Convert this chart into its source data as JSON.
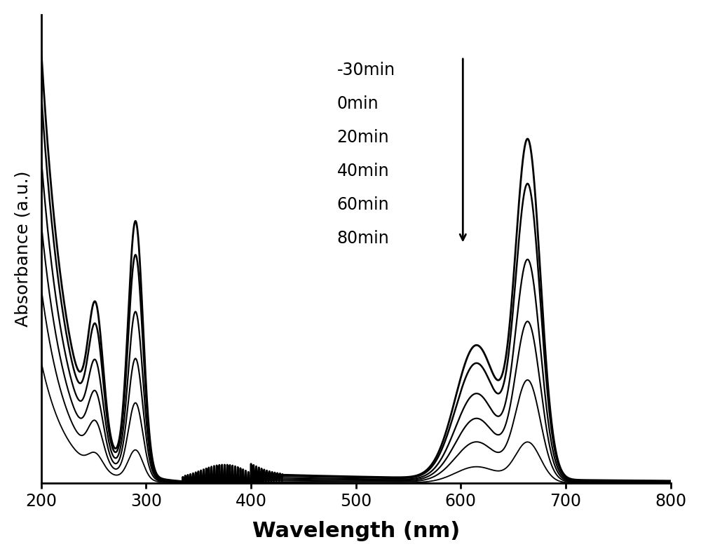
{
  "title": "",
  "xlabel": "Wavelength (nm)",
  "ylabel": "Absorbance (a.u.)",
  "xlim": [
    200,
    800
  ],
  "background_color": "#ffffff",
  "legend_labels": [
    "-30min",
    "0min",
    "20min",
    "40min",
    "60min",
    "80min"
  ],
  "line_color": "#000000",
  "line_widths": [
    2.0,
    1.8,
    1.6,
    1.5,
    1.4,
    1.3
  ],
  "scale_factors": [
    1.0,
    0.87,
    0.65,
    0.47,
    0.3,
    0.12
  ],
  "uv_edge_scales": [
    1.0,
    0.9,
    0.75,
    0.6,
    0.45,
    0.28
  ]
}
